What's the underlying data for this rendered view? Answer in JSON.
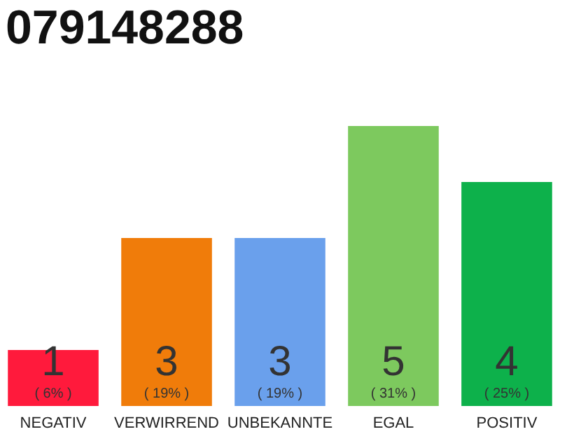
{
  "chart_data": {
    "type": "bar",
    "title": "079148288",
    "categories": [
      "NEGATIV",
      "VERWIRREND",
      "UNBEKANNTE",
      "EGAL",
      "POSITIV"
    ],
    "values": [
      1,
      3,
      3,
      5,
      4
    ],
    "colors": [
      "#ff1a3c",
      "#f07c0a",
      "#6aa0ec",
      "#7dc95e",
      "#0db14b"
    ],
    "data_labels": true,
    "annotations": [
      "( 6% )",
      "( 19% )",
      "( 19% )",
      "( 31% )",
      "( 25% )"
    ]
  }
}
